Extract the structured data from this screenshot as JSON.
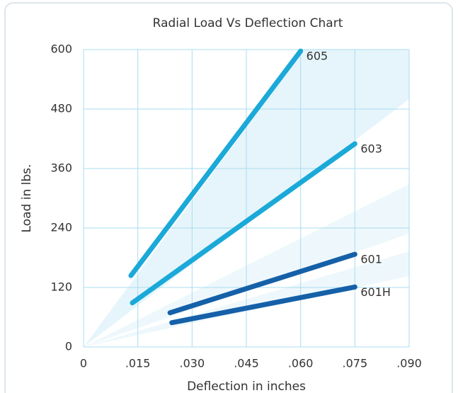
{
  "chart_data": {
    "type": "line",
    "title": "Radial Load Vs Deflection Chart",
    "x_label": "Deflection in inches",
    "y_label": "Load in lbs.",
    "xlim": [
      0,
      0.09
    ],
    "xticks": [
      0,
      {
        "value": 0.015,
        "label": ".015"
      },
      {
        "value": 0.03,
        "label": ".030"
      },
      {
        "value": 0.045,
        "label": ".045"
      },
      {
        "value": 0.06,
        "label": ".060"
      },
      {
        "value": 0.075,
        "label": ".075"
      },
      {
        "value": 0.09,
        "label": ".090"
      }
    ],
    "ylim": [
      0,
      600
    ],
    "yticks": [
      0,
      120,
      240,
      360,
      480,
      600
    ],
    "grid": true,
    "series": [
      {
        "name": "605",
        "color": "#1aa9d8",
        "x": [
          0.0131,
          0.06
        ],
        "values": [
          144,
          597
        ]
      },
      {
        "name": "603",
        "color": "#1aa9d8",
        "x": [
          0.0135,
          0.075
        ],
        "values": [
          89,
          410
        ]
      },
      {
        "name": "601",
        "color": "#1560a8",
        "x": [
          0.0239,
          0.075
        ],
        "values": [
          69,
          187
        ]
      },
      {
        "name": "601H",
        "color": "#1560a8",
        "x": [
          0.0244,
          0.075
        ],
        "values": [
          49,
          121
        ]
      }
    ]
  }
}
